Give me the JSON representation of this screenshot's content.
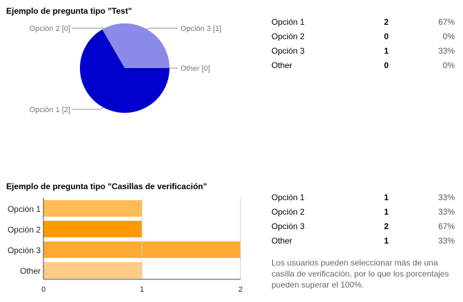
{
  "q1": {
    "title": "Ejemplo de pregunta tipo \"Test\"",
    "rows": [
      {
        "label": "Opción 1",
        "count": "2",
        "percent": "67%"
      },
      {
        "label": "Opción 2",
        "count": "0",
        "percent": "0%"
      },
      {
        "label": "Opción 3",
        "count": "1",
        "percent": "33%"
      },
      {
        "label": "Other",
        "count": "0",
        "percent": "0%"
      }
    ],
    "chart_data": {
      "type": "pie",
      "slices": [
        {
          "label": "Opción 1 [2]",
          "value": 2,
          "color": "#0000cc"
        },
        {
          "label": "Opción 2 [0]",
          "value": 0,
          "color": "#3333cc"
        },
        {
          "label": "Opción 3 [1]",
          "value": 1,
          "color": "#8a8ae8"
        },
        {
          "label": "Other [0]",
          "value": 0,
          "color": "#aaaaee"
        }
      ]
    }
  },
  "q2": {
    "title": "Ejemplo de pregunta tipo \"Casillas de verificación\"",
    "rows": [
      {
        "label": "Opción 1",
        "count": "1",
        "percent": "33%"
      },
      {
        "label": "Opción 2",
        "count": "1",
        "percent": "33%"
      },
      {
        "label": "Opción 3",
        "count": "2",
        "percent": "67%"
      },
      {
        "label": "Other",
        "count": "1",
        "percent": "33%"
      }
    ],
    "note": "Los usuarios pueden seleccionar más de una casilla de verificación, por lo que los porcentajes pueden superar el 100%.",
    "chart_data": {
      "type": "bar",
      "orientation": "horizontal",
      "categories": [
        "Opción 1",
        "Opción 2",
        "Opción 3",
        "Other"
      ],
      "values": [
        1,
        1,
        2,
        1
      ],
      "colors": [
        "#ffbb55",
        "#ff9900",
        "#ffaa33",
        "#ffcc88"
      ],
      "xlim": [
        0,
        2
      ],
      "xticks": [
        "0",
        "1",
        "2"
      ]
    }
  }
}
